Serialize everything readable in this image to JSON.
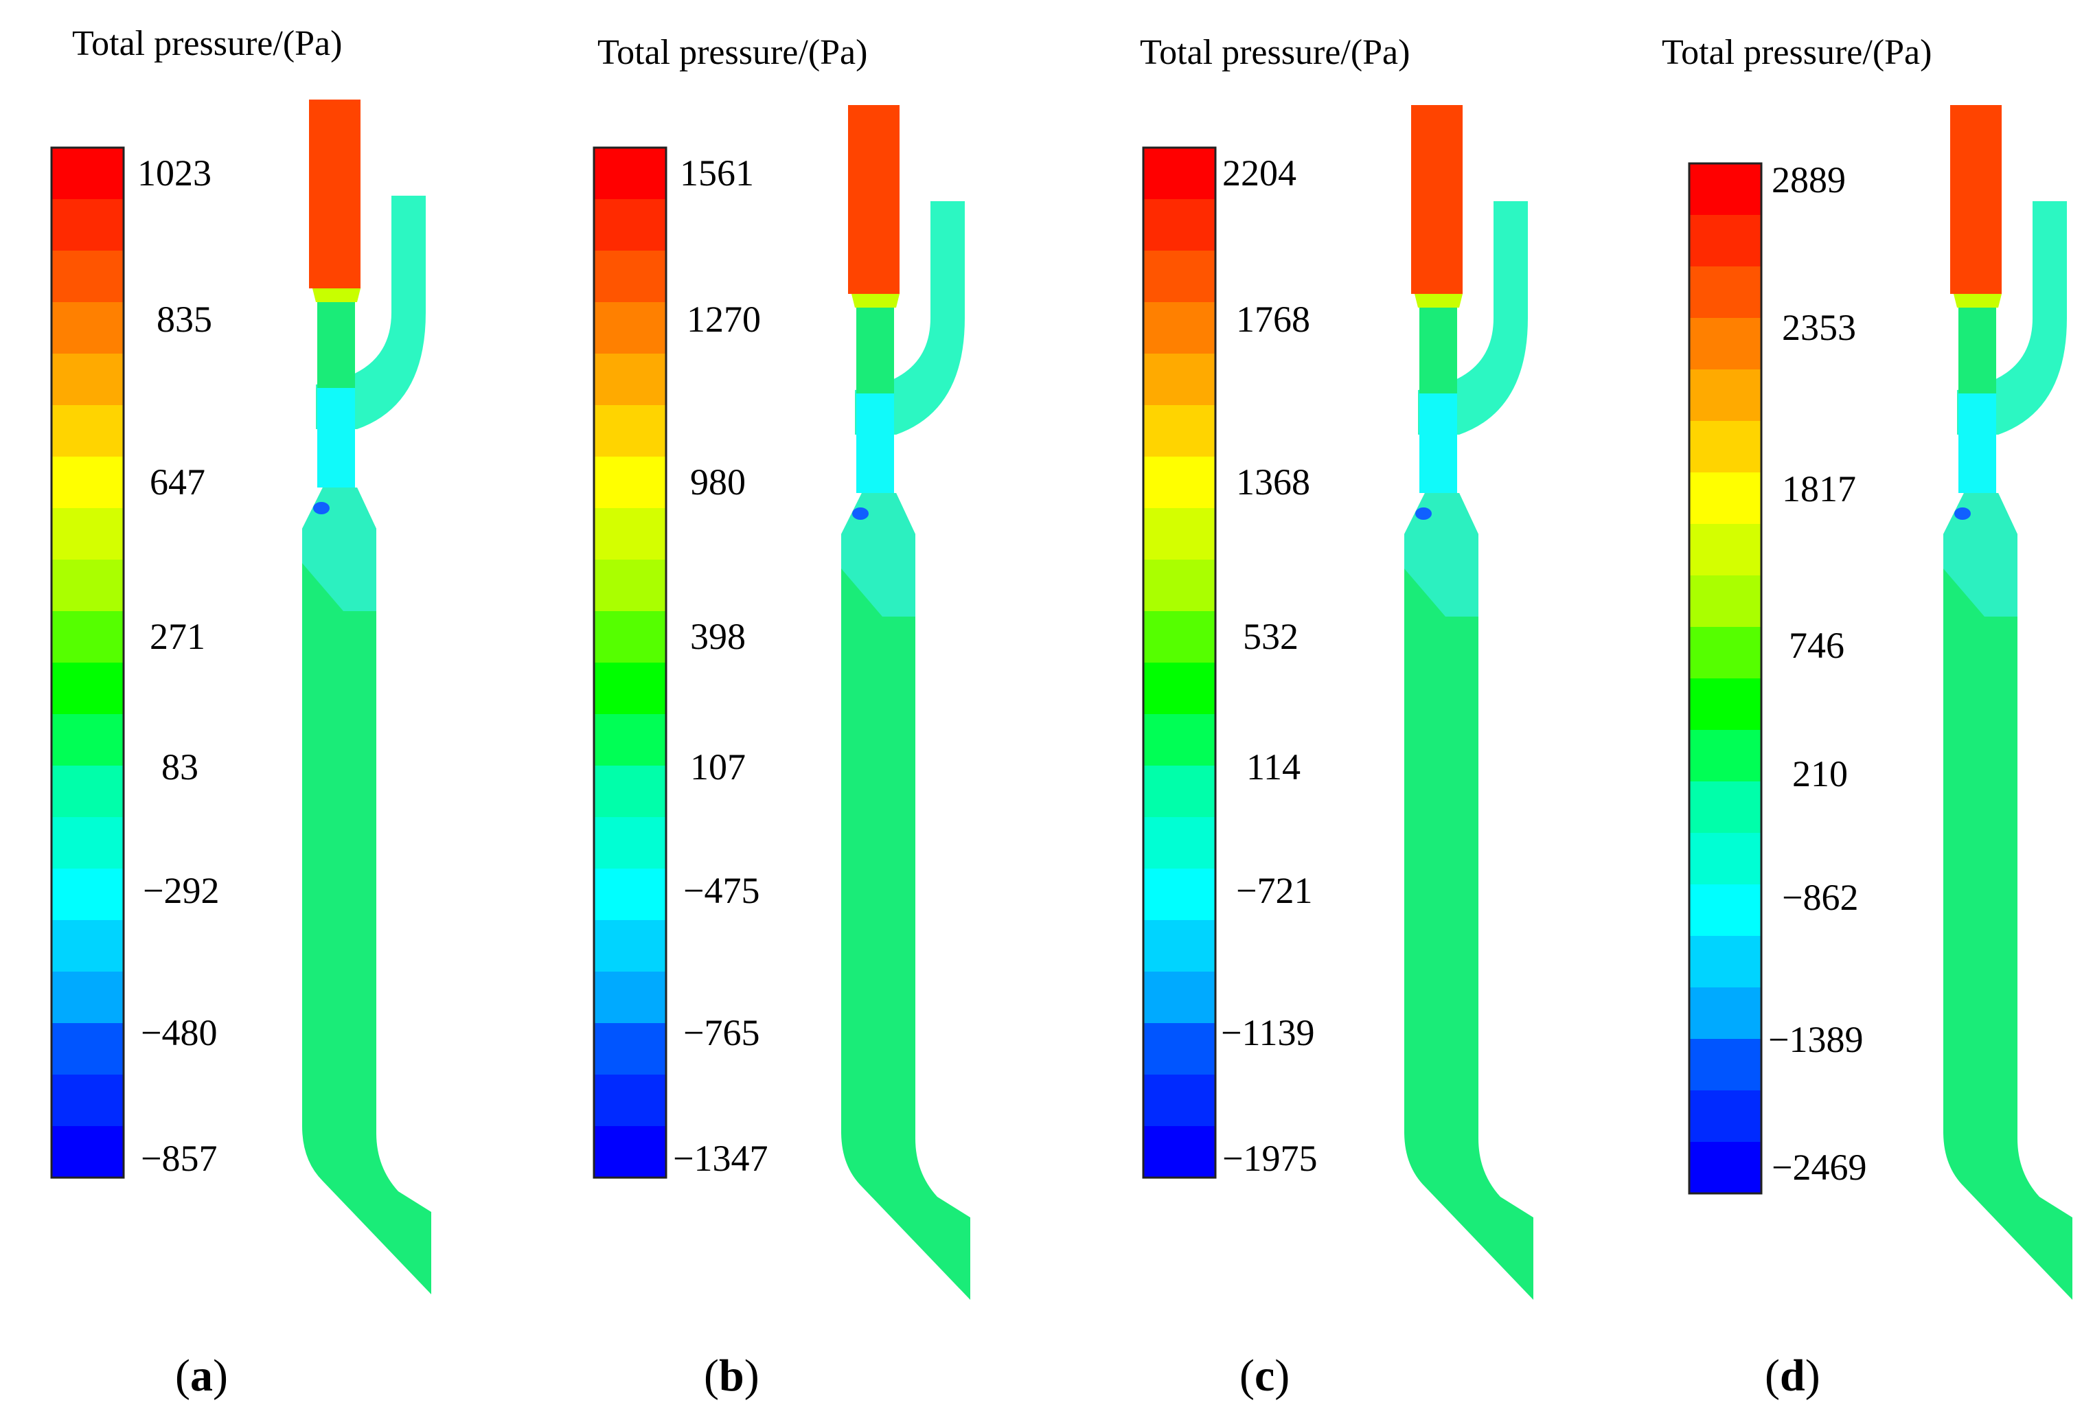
{
  "figure": {
    "panels": [
      {
        "id": "a",
        "caption_letter": "a",
        "legend_title": "Total pressure/(Pa)",
        "ticks": [
          "1023",
          "835",
          "647",
          "271",
          "83",
          "−292",
          "−480",
          "−857"
        ]
      },
      {
        "id": "b",
        "caption_letter": "b",
        "legend_title": "Total pressure/(Pa)",
        "ticks": [
          "1561",
          "1270",
          "980",
          "398",
          "107",
          "−475",
          "−765",
          "−1347"
        ]
      },
      {
        "id": "c",
        "caption_letter": "c",
        "legend_title": "Total pressure/(Pa)",
        "ticks": [
          "2204",
          "1768",
          "1368",
          "532",
          "114",
          "−721",
          "−1139",
          "−1975"
        ]
      },
      {
        "id": "d",
        "caption_letter": "d",
        "legend_title": "Total pressure/(Pa)",
        "ticks": [
          "2889",
          "2353",
          "1817",
          "746",
          "210",
          "−862",
          "−1389",
          "−2469"
        ]
      }
    ],
    "caption_open": "(",
    "caption_close": ")"
  },
  "colors": {
    "colormap": [
      "#ff0000",
      "#ff2a00",
      "#ff5500",
      "#ff8000",
      "#ffaa00",
      "#ffd400",
      "#ffff00",
      "#d4ff00",
      "#aaff00",
      "#55ff00",
      "#00ff00",
      "#00ff55",
      "#00ffaa",
      "#00ffd4",
      "#00ffff",
      "#00d4ff",
      "#00aaff",
      "#0055ff",
      "#002aff",
      "#0000ff"
    ],
    "inlet_red": "#ff4400",
    "jet_green": "#1aec78",
    "branch_teal": "#2cf7c2",
    "throat_cyan": "#10fafa",
    "diffuser_teal": "#2cf0c0",
    "vortex_blue": "#1060ff"
  }
}
